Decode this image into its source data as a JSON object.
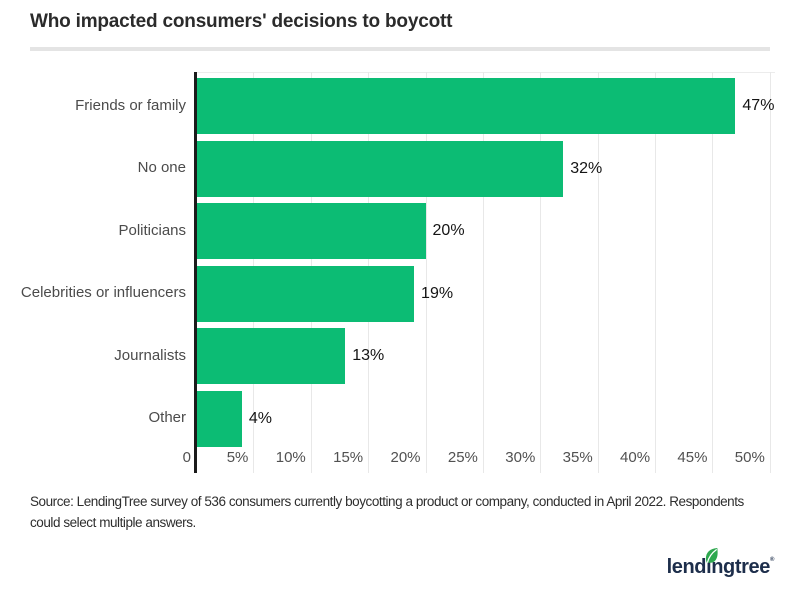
{
  "chart_data": {
    "type": "bar",
    "orientation": "horizontal",
    "title": "Who impacted consumers' decisions to boycott",
    "categories": [
      "Friends or family",
      "No one",
      "Politicians",
      "Celebrities or influencers",
      "Journalists",
      "Other"
    ],
    "values": [
      47,
      32,
      20,
      19,
      13,
      4
    ],
    "value_labels": [
      "47%",
      "32%",
      "20%",
      "19%",
      "13%",
      "4%"
    ],
    "x_tick_labels": [
      "0",
      "5%",
      "10%",
      "15%",
      "20%",
      "25%",
      "30%",
      "35%",
      "40%",
      "45%",
      "50%"
    ],
    "x_tick_values": [
      0,
      5,
      10,
      15,
      20,
      25,
      30,
      35,
      40,
      45,
      50
    ],
    "xlim": [
      0,
      50.45
    ],
    "grid": true,
    "legend": "none",
    "bar_color": "#0cbc74",
    "axis_color": "#1b1b1b",
    "gridline_color": "#e8e8e8"
  },
  "footer": {
    "source_lines": [
      "Source: LendingTree survey of 536 consumers currently boycotting a product or company, conducted in April 2022. Respondents",
      "could select multiple answers."
    ],
    "logo": {
      "text": "lendingtree",
      "registered_mark": "®",
      "navy": "#1d2e4b",
      "leaf_green": "#2ea84f"
    }
  }
}
